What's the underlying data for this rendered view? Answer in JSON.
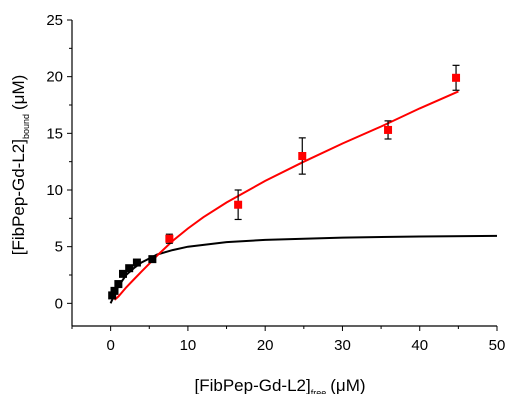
{
  "chart_data": {
    "type": "scatter",
    "xlabel": {
      "main": "[FibPep-Gd-L2]",
      "sub": "free",
      "unit": "(μM)"
    },
    "ylabel": {
      "main": "[FibPep-Gd-L2]",
      "sub": "bound",
      "unit": "(μM)"
    },
    "xlim": [
      -5,
      50
    ],
    "ylim": [
      -2,
      25
    ],
    "x_ticks": [
      0,
      10,
      20,
      30,
      40,
      50
    ],
    "y_ticks": [
      0,
      5,
      10,
      15,
      20,
      25
    ],
    "grid": false,
    "series": [
      {
        "color": "#000000",
        "marker": "square",
        "points": [
          {
            "x": 0.2,
            "y": 0.7
          },
          {
            "x": 0.5,
            "y": 1.1
          },
          {
            "x": 1.0,
            "y": 1.7
          },
          {
            "x": 1.6,
            "y": 2.6
          },
          {
            "x": 2.4,
            "y": 3.1
          },
          {
            "x": 3.4,
            "y": 3.6
          },
          {
            "x": 5.4,
            "y": 3.9
          }
        ],
        "fit": [
          {
            "x": 0,
            "y": 0
          },
          {
            "x": 1,
            "y": 1.5
          },
          {
            "x": 2,
            "y": 2.5
          },
          {
            "x": 3,
            "y": 3.1
          },
          {
            "x": 4,
            "y": 3.6
          },
          {
            "x": 6,
            "y": 4.3
          },
          {
            "x": 8,
            "y": 4.7
          },
          {
            "x": 10,
            "y": 5.0
          },
          {
            "x": 15,
            "y": 5.4
          },
          {
            "x": 20,
            "y": 5.6
          },
          {
            "x": 25,
            "y": 5.7
          },
          {
            "x": 30,
            "y": 5.8
          },
          {
            "x": 40,
            "y": 5.9
          },
          {
            "x": 50,
            "y": 5.95
          }
        ]
      },
      {
        "color": "#ff0000",
        "marker": "square",
        "points": [
          {
            "x": 7.6,
            "y": 5.7,
            "err": 0.4
          },
          {
            "x": 16.5,
            "y": 8.7,
            "err": 1.3
          },
          {
            "x": 24.8,
            "y": 13.0,
            "err": 1.6
          },
          {
            "x": 35.9,
            "y": 15.3,
            "err": 0.8
          },
          {
            "x": 44.7,
            "y": 19.9,
            "err": 1.1
          }
        ],
        "fit": [
          {
            "x": 0.5,
            "y": 0.3
          },
          {
            "x": 1,
            "y": 0.6
          },
          {
            "x": 2,
            "y": 1.4
          },
          {
            "x": 3,
            "y": 2.1
          },
          {
            "x": 4,
            "y": 2.8
          },
          {
            "x": 5,
            "y": 3.5
          },
          {
            "x": 6,
            "y": 4.2
          },
          {
            "x": 8,
            "y": 5.5
          },
          {
            "x": 10,
            "y": 6.6
          },
          {
            "x": 12,
            "y": 7.6
          },
          {
            "x": 15,
            "y": 8.9
          },
          {
            "x": 20,
            "y": 10.8
          },
          {
            "x": 25,
            "y": 12.5
          },
          {
            "x": 30,
            "y": 14.1
          },
          {
            "x": 35,
            "y": 15.6
          },
          {
            "x": 40,
            "y": 17.2
          },
          {
            "x": 45,
            "y": 18.7
          }
        ]
      }
    ]
  }
}
